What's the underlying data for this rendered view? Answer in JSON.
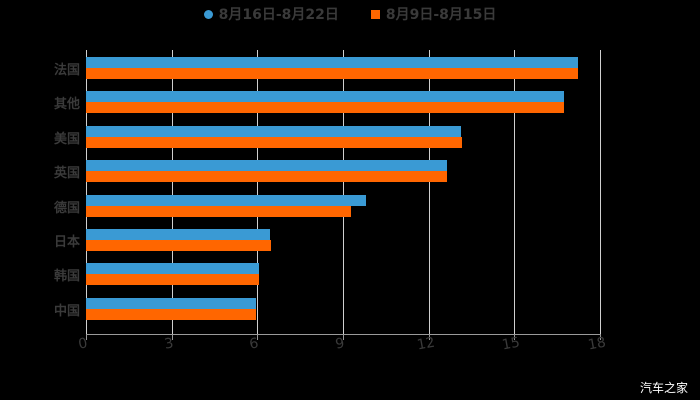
{
  "legend": [
    {
      "label": "8月16日-8月22日",
      "color": "#3a9ad4",
      "shape": "circle"
    },
    {
      "label": "8月9日-8月15日",
      "color": "#ff6600",
      "shape": "square"
    }
  ],
  "watermark": "汽车之家",
  "chart_data": {
    "type": "bar",
    "orientation": "horizontal",
    "title": "",
    "xlabel": "",
    "ylabel": "",
    "xlim": [
      0,
      18
    ],
    "xticks": [
      0,
      3,
      6,
      9,
      12,
      15,
      18
    ],
    "grid": true,
    "legend_position": "top",
    "categories": [
      "法国",
      "其他",
      "美国",
      "英国",
      "德国",
      "日本",
      "韩国",
      "中国"
    ],
    "series": [
      {
        "name": "8月16日-8月22日",
        "color": "#3a9ad4",
        "values": [
          17.23,
          16.74,
          13.13,
          12.64,
          9.81,
          6.44,
          6.06,
          5.95
        ]
      },
      {
        "name": "8月9日-8月15日",
        "color": "#ff6600",
        "values": [
          17.23,
          16.74,
          13.17,
          12.64,
          9.28,
          6.48,
          6.06,
          5.95
        ]
      }
    ]
  }
}
